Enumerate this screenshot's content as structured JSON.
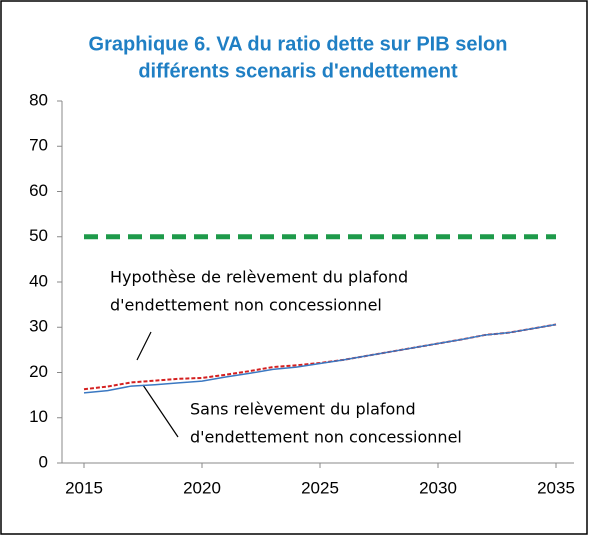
{
  "chart_data": {
    "type": "line",
    "title": [
      "Graphique 6. VA du ratio dette sur PIB selon",
      "différents scenaris d'endettement"
    ],
    "x": [
      2015,
      2016,
      2017,
      2018,
      2019,
      2020,
      2021,
      2022,
      2023,
      2024,
      2025,
      2026,
      2027,
      2028,
      2029,
      2030,
      2031,
      2032,
      2033,
      2034,
      2035
    ],
    "series": [
      {
        "color": "#1e9a4a",
        "style": "dashed",
        "values": [
          50,
          50,
          50,
          50,
          50,
          50,
          50,
          50,
          50,
          50,
          50,
          50,
          50,
          50,
          50,
          50,
          50,
          50,
          50,
          50,
          50
        ]
      },
      {
        "color": "#d42020",
        "style": "dotted",
        "values": [
          16.3,
          16.9,
          17.8,
          18.2,
          18.6,
          18.8,
          19.5,
          20.3,
          21.2,
          21.6,
          22.1,
          22.8,
          23.7,
          24.6,
          25.5,
          26.4,
          27.3,
          28.3,
          28.8,
          29.7,
          30.6
        ]
      },
      {
        "color": "#3a78c2",
        "style": "solid",
        "values": [
          15.5,
          16,
          17,
          17.3,
          17.7,
          18.1,
          19,
          19.8,
          20.7,
          21.2,
          22,
          22.8,
          23.7,
          24.6,
          25.5,
          26.4,
          27.3,
          28.3,
          28.8,
          29.7,
          30.6
        ]
      }
    ],
    "annotations": [
      {
        "text": [
          "Hypothèse de relèvement du plafond",
          "d'endettement non concessionnel"
        ]
      },
      {
        "text": [
          "Sans relèvement du plafond",
          "d'endettement non concessionnel"
        ]
      }
    ],
    "xlim": [
      2015,
      2035
    ],
    "xticks": [
      2015,
      2020,
      2025,
      2030,
      2035
    ],
    "ylim": [
      0,
      80
    ],
    "yticks": [
      0,
      10,
      20,
      30,
      40,
      50,
      60,
      70,
      80
    ]
  }
}
